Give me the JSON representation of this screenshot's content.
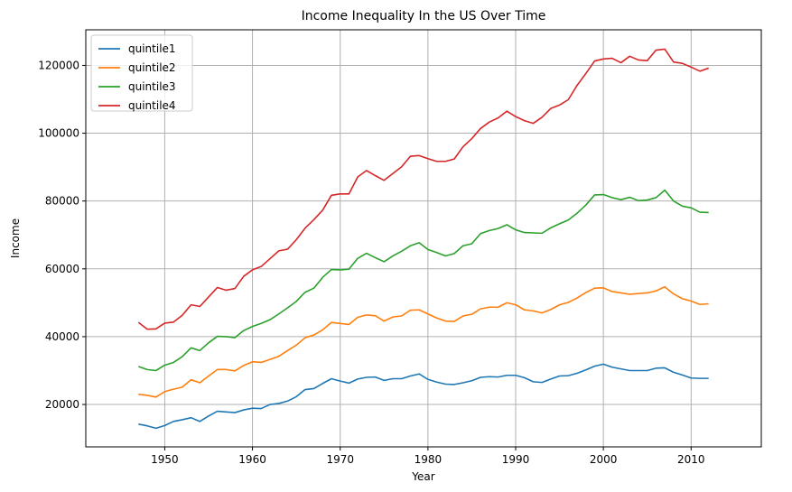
{
  "chart_data": {
    "type": "line",
    "title": "Income Inequality In the US Over Time",
    "xlabel": "Year",
    "ylabel": "Income",
    "xlim": [
      1941,
      2018
    ],
    "ylim": [
      7500,
      130500
    ],
    "xticks": [
      1950,
      1960,
      1970,
      1980,
      1990,
      2000,
      2010
    ],
    "yticks": [
      20000,
      40000,
      60000,
      80000,
      100000,
      120000
    ],
    "grid": true,
    "legend_position": "top-left",
    "x": [
      1947,
      1948,
      1949,
      1950,
      1951,
      1952,
      1953,
      1954,
      1955,
      1956,
      1957,
      1958,
      1959,
      1960,
      1961,
      1962,
      1963,
      1964,
      1965,
      1966,
      1967,
      1968,
      1969,
      1970,
      1971,
      1972,
      1973,
      1974,
      1975,
      1976,
      1977,
      1978,
      1979,
      1980,
      1981,
      1982,
      1983,
      1984,
      1985,
      1986,
      1987,
      1988,
      1989,
      1990,
      1991,
      1992,
      1993,
      1994,
      1995,
      1996,
      1997,
      1998,
      1999,
      2000,
      2001,
      2002,
      2003,
      2004,
      2005,
      2006,
      2007,
      2008,
      2009,
      2010,
      2011,
      2012
    ],
    "series": [
      {
        "name": "quintile1",
        "color": "#1f77b4",
        "values": [
          14200,
          13700,
          13000,
          13800,
          15000,
          15500,
          16100,
          15000,
          16600,
          18000,
          17800,
          17600,
          18400,
          18900,
          18800,
          20000,
          20300,
          21000,
          22300,
          24400,
          24700,
          26200,
          27600,
          26900,
          26300,
          27500,
          28000,
          28100,
          27100,
          27600,
          27600,
          28400,
          29000,
          27400,
          26600,
          26000,
          25900,
          26400,
          27000,
          28000,
          28200,
          28100,
          28600,
          28600,
          27900,
          26700,
          26500,
          27500,
          28400,
          28500,
          29200,
          30200,
          31300,
          31900,
          31000,
          30500,
          30000,
          30000,
          30000,
          30700,
          30800,
          29500,
          28700,
          27800,
          27700,
          27700
        ]
      },
      {
        "name": "quintile2",
        "color": "#ff7f0e",
        "values": [
          23000,
          22700,
          22200,
          23800,
          24500,
          25100,
          27300,
          26400,
          28400,
          30300,
          30300,
          29900,
          31500,
          32600,
          32400,
          33300,
          34200,
          35900,
          37500,
          39700,
          40500,
          42000,
          44200,
          43900,
          43600,
          45700,
          46400,
          46200,
          44600,
          45800,
          46100,
          47800,
          47900,
          46700,
          45500,
          44600,
          44500,
          46100,
          46600,
          48200,
          48700,
          48700,
          50000,
          49400,
          47900,
          47600,
          47000,
          48000,
          49400,
          50100,
          51400,
          53000,
          54300,
          54400,
          53300,
          52900,
          52500,
          52700,
          52900,
          53500,
          54700,
          52600,
          51200,
          50500,
          49500,
          49700
        ]
      },
      {
        "name": "quintile3",
        "color": "#2ca02c",
        "values": [
          31200,
          30300,
          30000,
          31600,
          32400,
          34100,
          36700,
          35900,
          38200,
          40100,
          40000,
          39700,
          41800,
          43000,
          43900,
          45000,
          46700,
          48500,
          50400,
          53100,
          54300,
          57500,
          59800,
          59700,
          59900,
          63100,
          64600,
          63300,
          62100,
          63800,
          65200,
          66800,
          67700,
          65700,
          64800,
          63800,
          64500,
          66800,
          67400,
          70400,
          71300,
          71900,
          73000,
          71500,
          70700,
          70600,
          70500,
          72100,
          73300,
          74400,
          76400,
          78800,
          81800,
          81900,
          81000,
          80400,
          81100,
          80100,
          80300,
          81000,
          83200,
          80000,
          78500,
          78000,
          76700,
          76600
        ]
      },
      {
        "name": "quintile4",
        "color": "#d62728",
        "values": [
          44200,
          42200,
          42300,
          44000,
          44300,
          46300,
          49400,
          48900,
          51700,
          54500,
          53700,
          54200,
          57800,
          59700,
          60700,
          63000,
          65300,
          65800,
          68600,
          72000,
          74500,
          77300,
          81700,
          82100,
          82100,
          87100,
          89000,
          87500,
          86100,
          88100,
          90100,
          93200,
          93400,
          92500,
          91700,
          91700,
          92400,
          96000,
          98400,
          101400,
          103300,
          104500,
          106500,
          104900,
          103700,
          102900,
          104700,
          107300,
          108300,
          109900,
          114100,
          117600,
          121300,
          121900,
          122100,
          120800,
          122700,
          121600,
          121400,
          124500,
          124800,
          121000,
          120600,
          119500,
          118300,
          119200
        ]
      }
    ]
  }
}
